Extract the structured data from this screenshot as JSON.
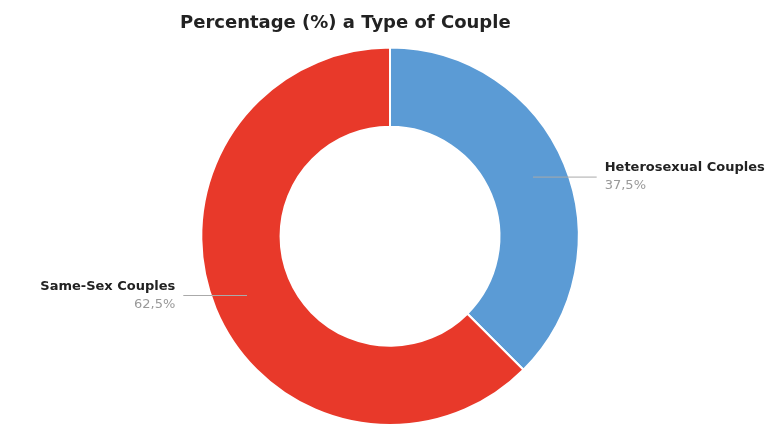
{
  "chart_data": {
    "type": "doughnut",
    "title": "Percentage (%) a Type of Couple",
    "categories": [
      "Heterosexual Couples",
      "Same-Sex Couples"
    ],
    "values": [
      37.5,
      62.5
    ],
    "value_labels": [
      "37,5%",
      "62,5%"
    ],
    "colors": [
      "#5B9BD5",
      "#E8392A"
    ],
    "data_labels": true
  }
}
